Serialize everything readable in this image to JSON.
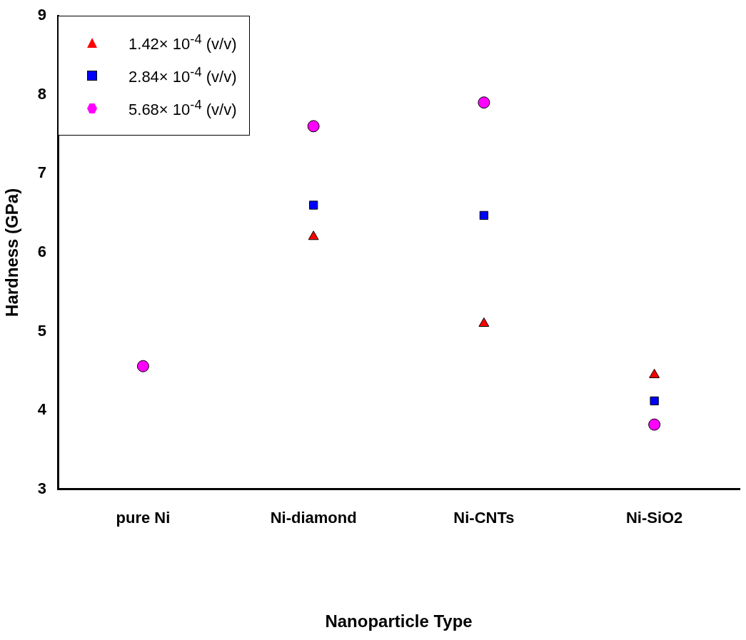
{
  "chart_data": {
    "type": "scatter",
    "xlabel": "Nanoparticle Type",
    "ylabel": "Hardness (GPa)",
    "categories": [
      "pure Ni",
      "Ni-diamond",
      "Ni-CNTs",
      "Ni-SiO2"
    ],
    "series": [
      {
        "name": "1.42× 10$^{-4}$ (v/v)",
        "color": "#ff0000",
        "marker": "triangle",
        "values": [
          null,
          6.2,
          5.1,
          4.45
        ]
      },
      {
        "name": "2.84× 10$^{-4}$ (v/v)",
        "color": "#0000ff",
        "marker": "square",
        "values": [
          null,
          6.6,
          6.47,
          4.12
        ]
      },
      {
        "name": "5.68× 10$^{-4}$ (v/v)",
        "color": "#ff00ff",
        "marker": "circle",
        "values": [
          4.56,
          7.6,
          7.9,
          3.82
        ]
      }
    ],
    "ylim": [
      3,
      9
    ],
    "yticks": [
      3,
      4,
      5,
      6,
      7,
      8,
      9
    ],
    "grid": false,
    "legend": "top left"
  }
}
